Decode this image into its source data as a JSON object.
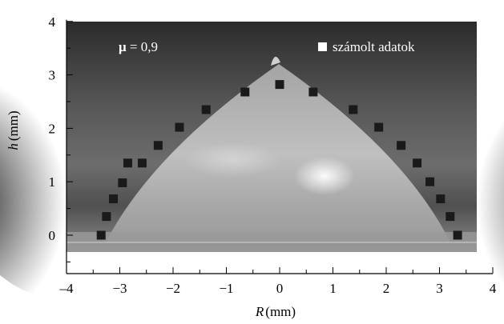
{
  "chart_data": {
    "type": "scatter",
    "title": "",
    "xlabel_var": "R",
    "xlabel_unit": "(mm)",
    "ylabel_var": "h",
    "ylabel_unit": "(mm)",
    "xlim": [
      -4,
      4
    ],
    "ylim": [
      -0.5,
      4
    ],
    "xticks": [
      -4,
      -3,
      -2,
      -1,
      0,
      1,
      2,
      3,
      4
    ],
    "xtick_labels": [
      "–4",
      "−3",
      "−2",
      "−1",
      "0",
      "1",
      "2",
      "3",
      "4"
    ],
    "yticks": [
      0,
      1,
      2,
      3,
      4
    ],
    "ytick_labels": [
      "0",
      "1",
      "2",
      "3",
      "4"
    ],
    "grid": false,
    "background": "photograph of a droplet on a surface",
    "legend": {
      "position": "top-right",
      "entries": [
        {
          "label": "számolt adatok",
          "marker": "square",
          "color": "#ffffff"
        }
      ]
    },
    "annotation": {
      "symbol": "μ",
      "value_text": " = 0,9"
    },
    "series": [
      {
        "name": "számolt adatok",
        "marker": "square",
        "color": "#1a1a1a",
        "x": [
          -3.35,
          -3.25,
          -3.12,
          -2.95,
          -2.85,
          -2.58,
          -2.28,
          -1.88,
          -1.38,
          -0.65,
          0.0,
          0.63,
          1.38,
          1.86,
          2.28,
          2.58,
          2.82,
          3.02,
          3.2,
          3.34
        ],
        "y": [
          0.0,
          0.35,
          0.68,
          0.98,
          1.35,
          1.35,
          1.68,
          2.02,
          2.35,
          2.68,
          2.82,
          2.68,
          2.35,
          2.02,
          1.68,
          1.35,
          1.0,
          0.68,
          0.35,
          0.0
        ]
      }
    ]
  }
}
